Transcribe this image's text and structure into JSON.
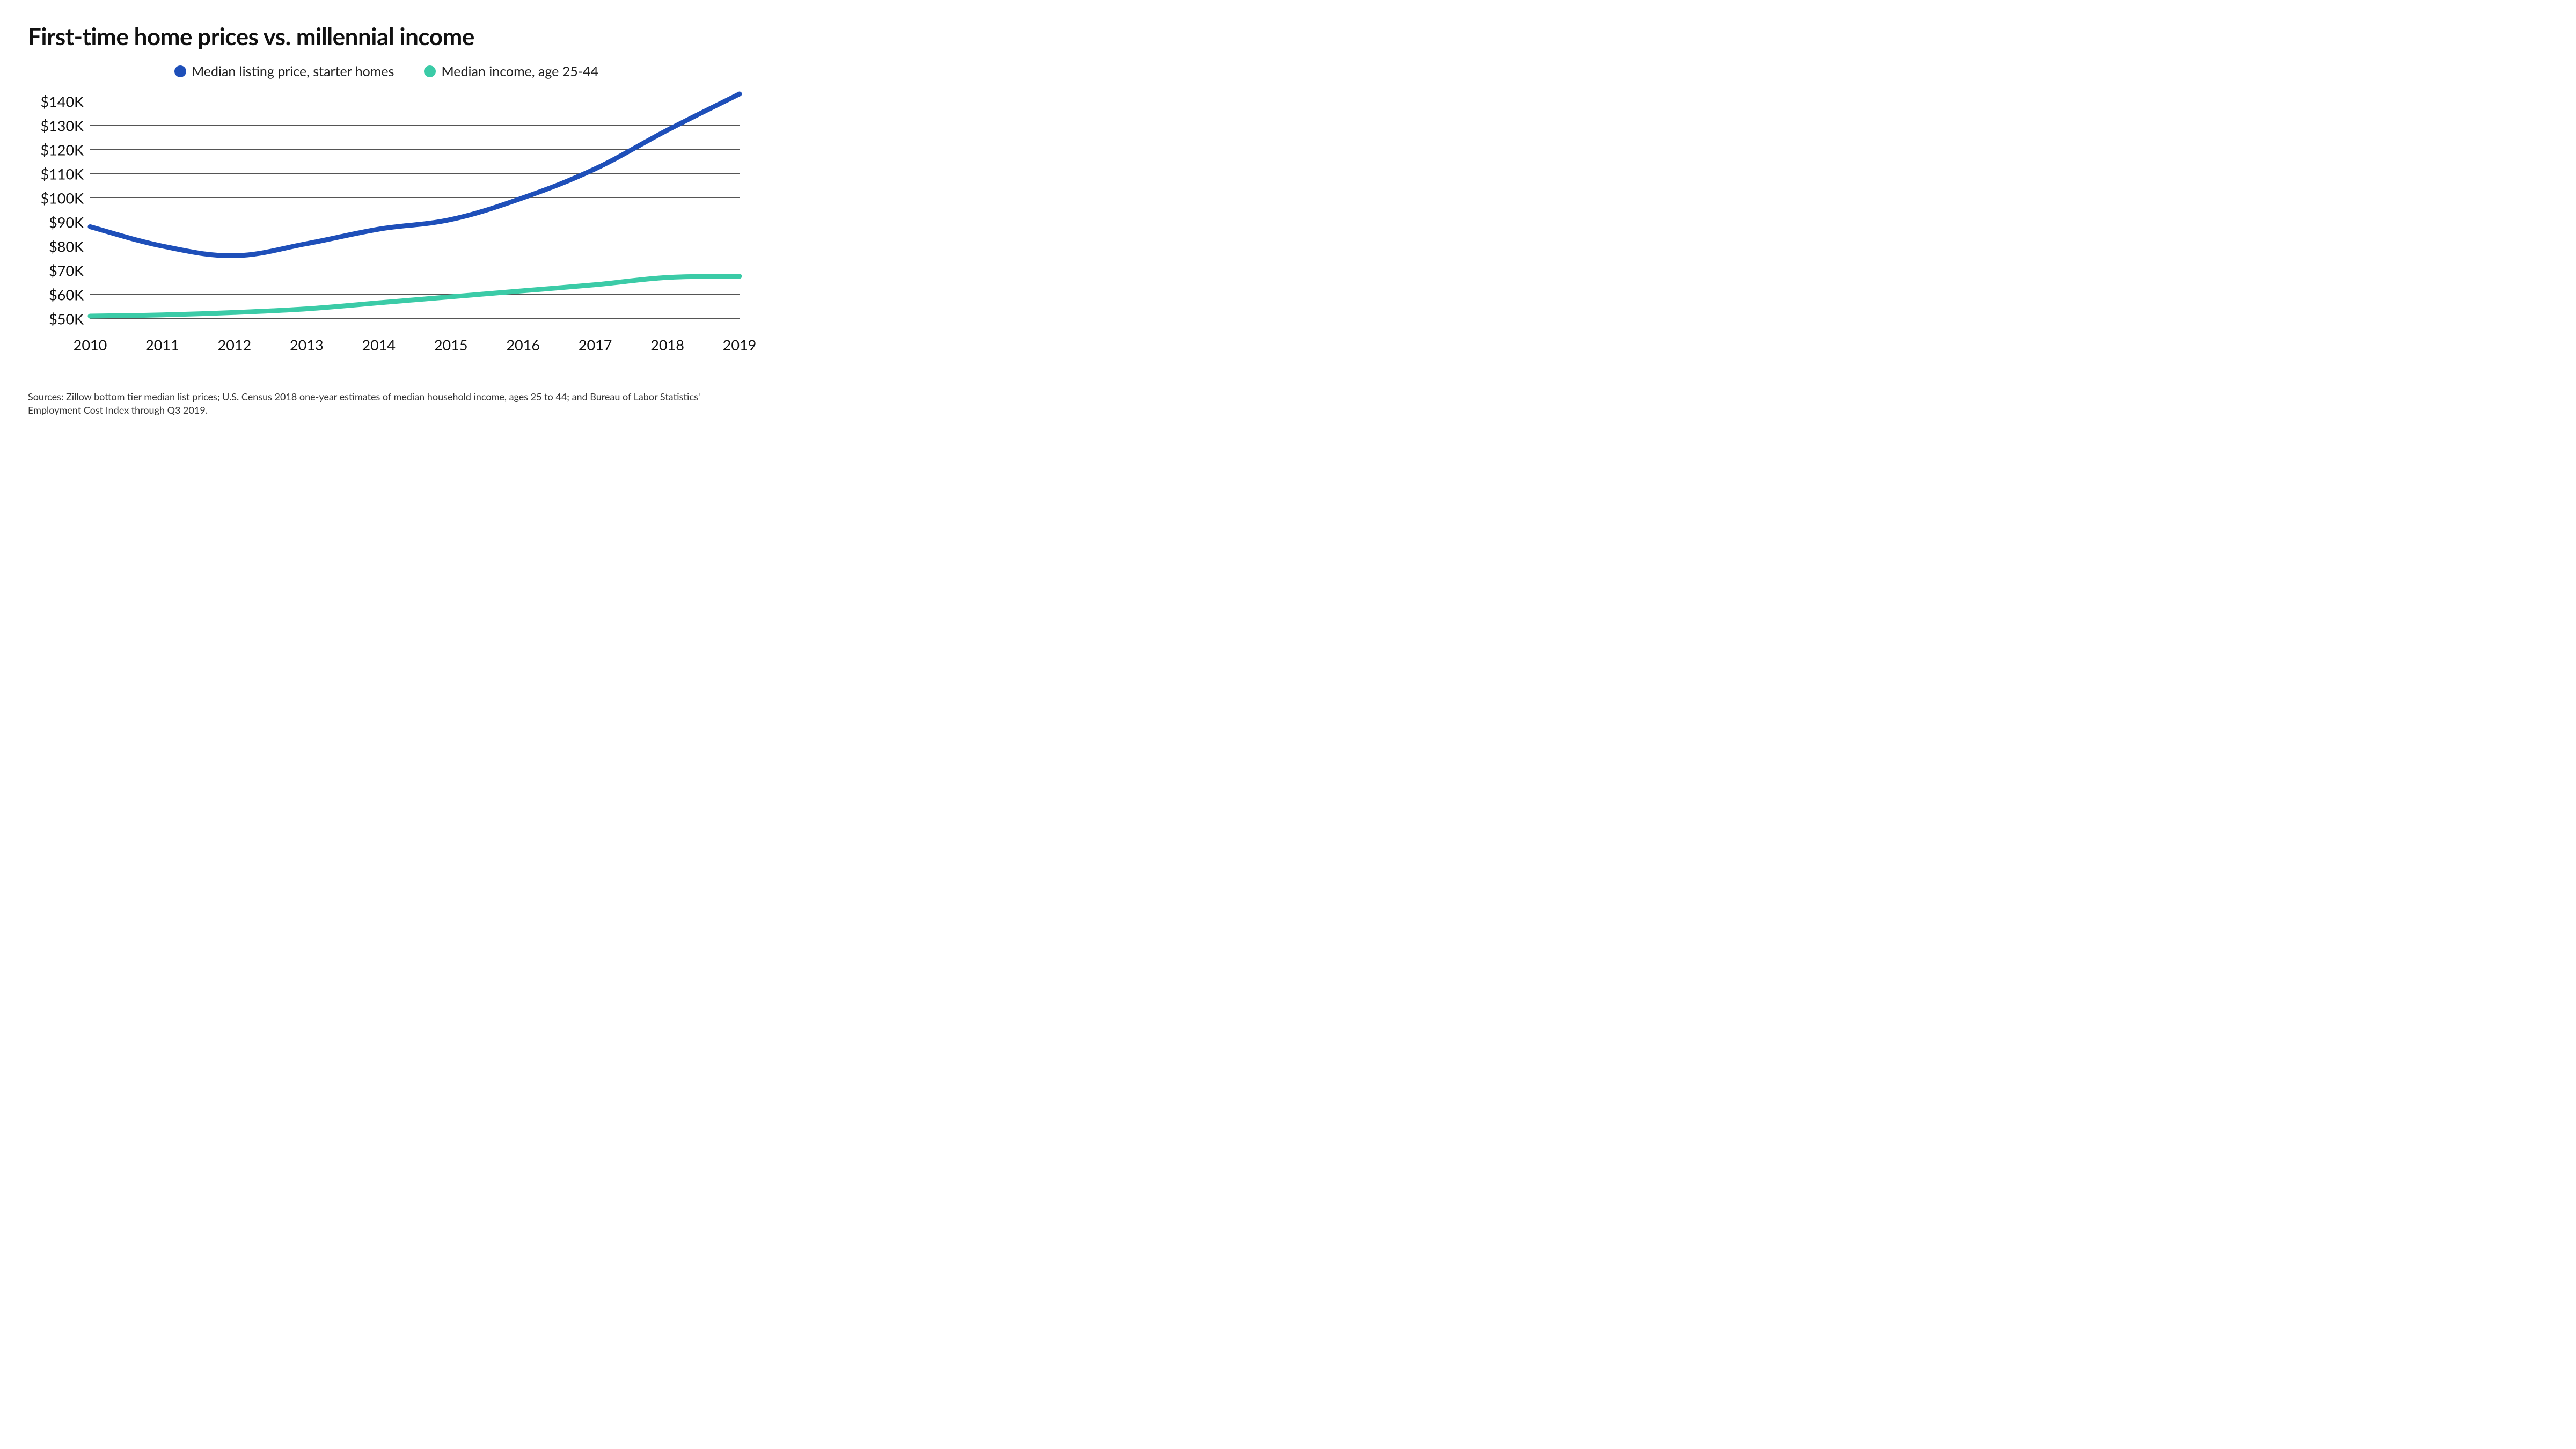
{
  "title": "First-time home prices vs. millennial income",
  "legend": [
    {
      "label": "Median listing price, starter homes",
      "color": "#1e4fb9"
    },
    {
      "label": "Median income, age 25-44",
      "color": "#3bcba7"
    }
  ],
  "chart": {
    "type": "line",
    "background_color": "#ffffff",
    "gridline_color": "#555555",
    "gridline_width": 1,
    "line_width": 9,
    "title_fontsize": 44,
    "label_fontsize": 27,
    "footer_fontsize": 18,
    "x": {
      "categories": [
        "2010",
        "2011",
        "2012",
        "2013",
        "2014",
        "2015",
        "2016",
        "2017",
        "2018",
        "2019"
      ],
      "min": 2010,
      "max": 2019
    },
    "y": {
      "min": 45,
      "max": 145,
      "ticks": [
        50,
        60,
        70,
        80,
        90,
        100,
        110,
        120,
        130,
        140
      ],
      "tick_labels": [
        "$50K",
        "$60K",
        "$70K",
        "$80K",
        "$90K",
        "$100K",
        "$110K",
        "$120K",
        "$130K",
        "$140K"
      ]
    },
    "series": [
      {
        "name": "Median listing price, starter homes",
        "color": "#1e4fb9",
        "values": [
          88,
          80,
          76,
          81,
          87,
          91,
          100,
          112,
          128,
          143
        ]
      },
      {
        "name": "Median income, age 25-44",
        "color": "#3bcba7",
        "values": [
          51,
          51.5,
          52.5,
          54,
          56.5,
          59,
          61.5,
          64,
          67,
          67.5
        ]
      }
    ]
  },
  "footer": "Sources: Zillow bottom tier median list prices; U.S. Census 2018 one-year estimates of median household income, ages 25 to 44; and Bureau of Labor Statistics' Employment Cost Index through Q3 2019."
}
